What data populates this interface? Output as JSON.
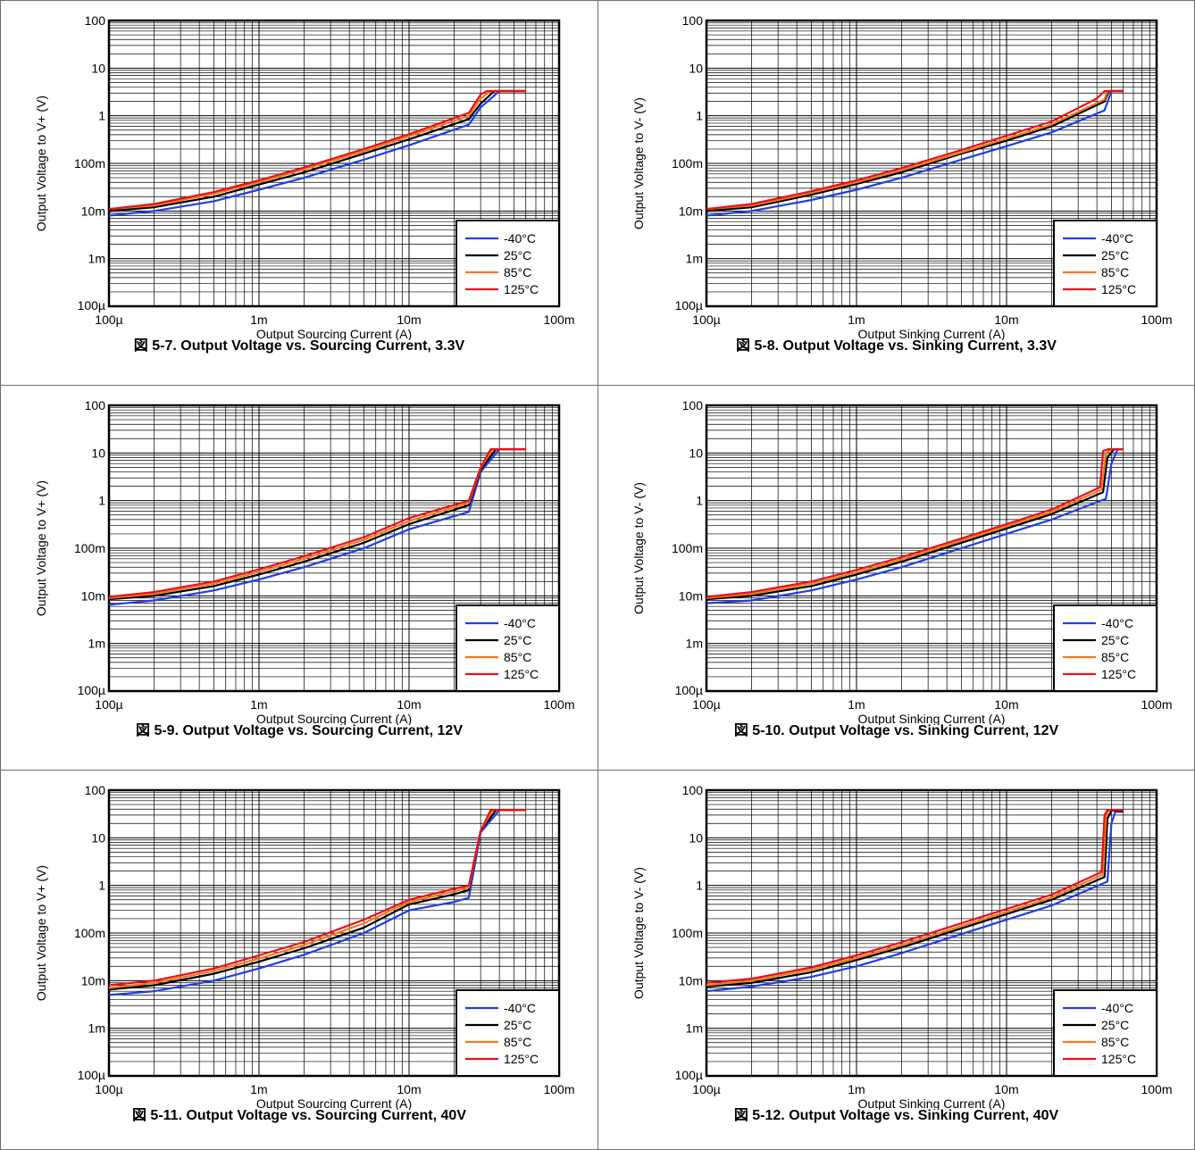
{
  "charts": [
    {
      "caption": "図 5-7. Output Voltage vs. Sourcing Current, 3.3V"
    },
    {
      "caption": "図 5-8. Output Voltage vs. Sinking Current, 3.3V"
    },
    {
      "caption": "図 5-9. Output Voltage vs. Sourcing Current, 12V"
    },
    {
      "caption": "図 5-10. Output Voltage vs. Sinking Current, 12V"
    },
    {
      "caption": "図 5-11. Output Voltage vs. Sourcing Current, 40V"
    },
    {
      "caption": "図 5-12. Output Voltage vs. Sinking Current, 40V"
    }
  ],
  "chart_data": [
    {
      "type": "line",
      "scale": "log-log",
      "xlabel": "Output Sourcing Current (A)",
      "ylabel": "Output Voltage to V+ (V)",
      "xlim": [
        0.0001,
        0.1
      ],
      "ylim": [
        0.0001,
        100
      ],
      "xticks": [
        "100µ",
        "1m",
        "10m",
        "100m"
      ],
      "yticks": [
        "100µ",
        "1m",
        "10m",
        "100m",
        "1",
        "10",
        "100"
      ],
      "grid": true,
      "legend": "bottom-right",
      "series": [
        {
          "name": "-40°C",
          "color": "#1f3fe0",
          "x": [
            0.0001,
            0.0002,
            0.0005,
            0.001,
            0.002,
            0.005,
            0.01,
            0.025,
            0.03,
            0.04,
            0.06
          ],
          "y": [
            0.008,
            0.01,
            0.016,
            0.028,
            0.05,
            0.12,
            0.24,
            0.65,
            1.5,
            3.3,
            3.3
          ]
        },
        {
          "name": "25°C",
          "color": "#000000",
          "x": [
            0.0001,
            0.0002,
            0.0005,
            0.001,
            0.002,
            0.005,
            0.01,
            0.025,
            0.03,
            0.037,
            0.06
          ],
          "y": [
            0.01,
            0.012,
            0.02,
            0.036,
            0.065,
            0.16,
            0.32,
            0.85,
            1.8,
            3.3,
            3.3
          ]
        },
        {
          "name": "85°C",
          "color": "#f07820",
          "x": [
            0.0001,
            0.0002,
            0.0005,
            0.001,
            0.002,
            0.005,
            0.01,
            0.025,
            0.03,
            0.035,
            0.06
          ],
          "y": [
            0.011,
            0.013,
            0.023,
            0.04,
            0.075,
            0.18,
            0.37,
            1.0,
            2.3,
            3.3,
            3.3
          ]
        },
        {
          "name": "125°C",
          "color": "#e8101a",
          "x": [
            0.0001,
            0.0002,
            0.0005,
            0.001,
            0.002,
            0.005,
            0.01,
            0.025,
            0.03,
            0.033,
            0.06
          ],
          "y": [
            0.011,
            0.014,
            0.025,
            0.044,
            0.082,
            0.2,
            0.41,
            1.15,
            2.8,
            3.3,
            3.3
          ]
        }
      ]
    },
    {
      "type": "line",
      "scale": "log-log",
      "xlabel": "Output Sinking Current (A)",
      "ylabel": "Output Voltage to V- (V)",
      "xlim": [
        0.0001,
        0.1
      ],
      "ylim": [
        0.0001,
        100
      ],
      "xticks": [
        "100µ",
        "1m",
        "10m",
        "100m"
      ],
      "yticks": [
        "100µ",
        "1m",
        "10m",
        "100m",
        "1",
        "10",
        "100"
      ],
      "grid": true,
      "legend": "bottom-right",
      "series": [
        {
          "name": "-40°C",
          "color": "#1f3fe0",
          "x": [
            0.0001,
            0.0002,
            0.0005,
            0.001,
            0.002,
            0.005,
            0.01,
            0.02,
            0.045,
            0.05,
            0.06
          ],
          "y": [
            0.008,
            0.01,
            0.017,
            0.028,
            0.05,
            0.12,
            0.23,
            0.45,
            1.3,
            3.3,
            3.3
          ]
        },
        {
          "name": "25°C",
          "color": "#000000",
          "x": [
            0.0001,
            0.0002,
            0.0005,
            0.001,
            0.002,
            0.005,
            0.01,
            0.02,
            0.045,
            0.048,
            0.06
          ],
          "y": [
            0.01,
            0.012,
            0.022,
            0.037,
            0.065,
            0.16,
            0.3,
            0.6,
            2.0,
            3.3,
            3.3
          ]
        },
        {
          "name": "85°C",
          "color": "#f07820",
          "x": [
            0.0001,
            0.0002,
            0.0005,
            0.001,
            0.002,
            0.005,
            0.01,
            0.02,
            0.045,
            0.047,
            0.06
          ],
          "y": [
            0.011,
            0.013,
            0.024,
            0.04,
            0.072,
            0.17,
            0.33,
            0.66,
            2.2,
            3.3,
            3.3
          ]
        },
        {
          "name": "125°C",
          "color": "#e8101a",
          "x": [
            0.0001,
            0.0002,
            0.0005,
            0.001,
            0.002,
            0.005,
            0.01,
            0.02,
            0.04,
            0.045,
            0.06
          ],
          "y": [
            0.011,
            0.014,
            0.026,
            0.044,
            0.08,
            0.19,
            0.38,
            0.76,
            2.3,
            3.3,
            3.3
          ]
        }
      ]
    },
    {
      "type": "line",
      "scale": "log-log",
      "xlabel": "Output Sourcing Current (A)",
      "ylabel": "Output Voltage to V+ (V)",
      "xlim": [
        0.0001,
        0.1
      ],
      "ylim": [
        0.0001,
        100
      ],
      "xticks": [
        "100µ",
        "1m",
        "10m",
        "100m"
      ],
      "yticks": [
        "100µ",
        "1m",
        "10m",
        "100m",
        "1",
        "10",
        "100"
      ],
      "grid": true,
      "legend": "bottom-right",
      "series": [
        {
          "name": "-40°C",
          "color": "#1f3fe0",
          "x": [
            0.0001,
            0.0002,
            0.0005,
            0.001,
            0.002,
            0.005,
            0.01,
            0.025,
            0.03,
            0.04,
            0.06
          ],
          "y": [
            0.0065,
            0.008,
            0.013,
            0.022,
            0.04,
            0.1,
            0.25,
            0.58,
            4.0,
            12,
            12
          ]
        },
        {
          "name": "25°C",
          "color": "#000000",
          "x": [
            0.0001,
            0.0002,
            0.0005,
            0.001,
            0.002,
            0.005,
            0.01,
            0.025,
            0.03,
            0.038,
            0.06
          ],
          "y": [
            0.0085,
            0.01,
            0.016,
            0.028,
            0.052,
            0.13,
            0.32,
            0.8,
            4.5,
            12,
            12
          ]
        },
        {
          "name": "85°C",
          "color": "#f07820",
          "x": [
            0.0001,
            0.0002,
            0.0005,
            0.001,
            0.002,
            0.005,
            0.01,
            0.025,
            0.03,
            0.036,
            0.06
          ],
          "y": [
            0.009,
            0.011,
            0.018,
            0.032,
            0.06,
            0.15,
            0.37,
            0.9,
            4.8,
            12,
            12
          ]
        },
        {
          "name": "125°C",
          "color": "#e8101a",
          "x": [
            0.0001,
            0.0002,
            0.0005,
            0.001,
            0.002,
            0.005,
            0.01,
            0.025,
            0.03,
            0.035,
            0.06
          ],
          "y": [
            0.0095,
            0.012,
            0.02,
            0.036,
            0.068,
            0.17,
            0.43,
            1.0,
            5.0,
            12,
            12
          ]
        }
      ]
    },
    {
      "type": "line",
      "scale": "log-log",
      "xlabel": "Output Sinking Current (A)",
      "ylabel": "Output Voltage to V- (V)",
      "xlim": [
        0.0001,
        0.1
      ],
      "ylim": [
        0.0001,
        100
      ],
      "xticks": [
        "100µ",
        "1m",
        "10m",
        "100m"
      ],
      "yticks": [
        "100µ",
        "1m",
        "10m",
        "100m",
        "1",
        "10",
        "100"
      ],
      "grid": true,
      "legend": "bottom-right",
      "series": [
        {
          "name": "-40°C",
          "color": "#1f3fe0",
          "x": [
            0.0001,
            0.0002,
            0.0005,
            0.001,
            0.002,
            0.005,
            0.01,
            0.02,
            0.046,
            0.05,
            0.055,
            0.06
          ],
          "y": [
            0.007,
            0.008,
            0.013,
            0.022,
            0.04,
            0.1,
            0.2,
            0.4,
            1.1,
            6,
            12,
            12
          ]
        },
        {
          "name": "25°C",
          "color": "#000000",
          "x": [
            0.0001,
            0.0002,
            0.0005,
            0.001,
            0.002,
            0.005,
            0.01,
            0.02,
            0.044,
            0.047,
            0.052,
            0.06
          ],
          "y": [
            0.0085,
            0.01,
            0.016,
            0.028,
            0.052,
            0.13,
            0.26,
            0.52,
            1.5,
            8,
            12,
            12
          ]
        },
        {
          "name": "85°C",
          "color": "#f07820",
          "x": [
            0.0001,
            0.0002,
            0.0005,
            0.001,
            0.002,
            0.005,
            0.01,
            0.02,
            0.043,
            0.046,
            0.05,
            0.06
          ],
          "y": [
            0.009,
            0.011,
            0.018,
            0.031,
            0.058,
            0.145,
            0.29,
            0.58,
            1.7,
            10,
            12,
            12
          ]
        },
        {
          "name": "125°C",
          "color": "#e8101a",
          "x": [
            0.0001,
            0.0002,
            0.0005,
            0.001,
            0.002,
            0.005,
            0.01,
            0.02,
            0.042,
            0.044,
            0.048,
            0.06
          ],
          "y": [
            0.0095,
            0.012,
            0.02,
            0.035,
            0.065,
            0.16,
            0.32,
            0.65,
            1.9,
            11,
            12,
            12
          ]
        }
      ]
    },
    {
      "type": "line",
      "scale": "log-log",
      "xlabel": "Output Sourcing Current (A)",
      "ylabel": "Output Voltage to V+ (V)",
      "xlim": [
        0.0001,
        0.1
      ],
      "ylim": [
        0.0001,
        100
      ],
      "xticks": [
        "100µ",
        "1m",
        "10m",
        "100m"
      ],
      "yticks": [
        "100µ",
        "1m",
        "10m",
        "100m",
        "1",
        "10",
        "100"
      ],
      "grid": true,
      "legend": "bottom-right",
      "series": [
        {
          "name": "-40°C",
          "color": "#1f3fe0",
          "x": [
            0.0001,
            0.0002,
            0.0005,
            0.001,
            0.002,
            0.005,
            0.01,
            0.02,
            0.025,
            0.03,
            0.04,
            0.06
          ],
          "y": [
            0.005,
            0.006,
            0.01,
            0.018,
            0.035,
            0.1,
            0.3,
            0.45,
            0.55,
            13,
            38,
            38
          ]
        },
        {
          "name": "25°C",
          "color": "#000000",
          "x": [
            0.0001,
            0.0002,
            0.0005,
            0.001,
            0.002,
            0.005,
            0.01,
            0.02,
            0.025,
            0.03,
            0.038,
            0.06
          ],
          "y": [
            0.0065,
            0.008,
            0.014,
            0.025,
            0.048,
            0.13,
            0.4,
            0.65,
            0.8,
            14,
            38,
            38
          ]
        },
        {
          "name": "85°C",
          "color": "#f07820",
          "x": [
            0.0001,
            0.0002,
            0.0005,
            0.001,
            0.002,
            0.005,
            0.01,
            0.02,
            0.025,
            0.03,
            0.036,
            0.06
          ],
          "y": [
            0.007,
            0.009,
            0.016,
            0.029,
            0.056,
            0.16,
            0.45,
            0.75,
            0.9,
            14,
            38,
            38
          ]
        },
        {
          "name": "125°C",
          "color": "#e8101a",
          "x": [
            0.0001,
            0.0002,
            0.0005,
            0.001,
            0.002,
            0.005,
            0.01,
            0.02,
            0.025,
            0.03,
            0.035,
            0.06
          ],
          "y": [
            0.008,
            0.01,
            0.018,
            0.034,
            0.065,
            0.19,
            0.5,
            0.85,
            1.0,
            14,
            38,
            38
          ]
        }
      ]
    },
    {
      "type": "line",
      "scale": "log-log",
      "xlabel": "Output Sinking Current (A)",
      "ylabel": "Output Voltage to V- (V)",
      "xlim": [
        0.0001,
        0.1
      ],
      "ylim": [
        0.0001,
        100
      ],
      "xticks": [
        "100µ",
        "1m",
        "10m",
        "100m"
      ],
      "yticks": [
        "100µ",
        "1m",
        "10m",
        "100m",
        "1",
        "10",
        "100"
      ],
      "grid": true,
      "legend": "bottom-right",
      "series": [
        {
          "name": "-40°C",
          "color": "#1f3fe0",
          "x": [
            0.0001,
            0.0002,
            0.0005,
            0.001,
            0.002,
            0.005,
            0.01,
            0.02,
            0.047,
            0.05,
            0.053,
            0.06
          ],
          "y": [
            0.006,
            0.0075,
            0.012,
            0.02,
            0.038,
            0.095,
            0.19,
            0.38,
            1.2,
            20,
            35,
            35
          ]
        },
        {
          "name": "25°C",
          "color": "#000000",
          "x": [
            0.0001,
            0.0002,
            0.0005,
            0.001,
            0.002,
            0.005,
            0.01,
            0.02,
            0.045,
            0.047,
            0.05,
            0.06
          ],
          "y": [
            0.0075,
            0.009,
            0.015,
            0.027,
            0.05,
            0.125,
            0.25,
            0.5,
            1.5,
            25,
            37,
            37
          ]
        },
        {
          "name": "85°C",
          "color": "#f07820",
          "x": [
            0.0001,
            0.0002,
            0.0005,
            0.001,
            0.002,
            0.005,
            0.01,
            0.02,
            0.044,
            0.046,
            0.048,
            0.06
          ],
          "y": [
            0.008,
            0.01,
            0.017,
            0.03,
            0.056,
            0.14,
            0.28,
            0.56,
            1.7,
            28,
            38,
            38
          ]
        },
        {
          "name": "125°C",
          "color": "#e8101a",
          "x": [
            0.0001,
            0.0002,
            0.0005,
            0.001,
            0.002,
            0.005,
            0.01,
            0.02,
            0.043,
            0.045,
            0.047,
            0.06
          ],
          "y": [
            0.009,
            0.011,
            0.019,
            0.034,
            0.064,
            0.16,
            0.32,
            0.64,
            1.9,
            30,
            38,
            38
          ]
        }
      ]
    }
  ]
}
